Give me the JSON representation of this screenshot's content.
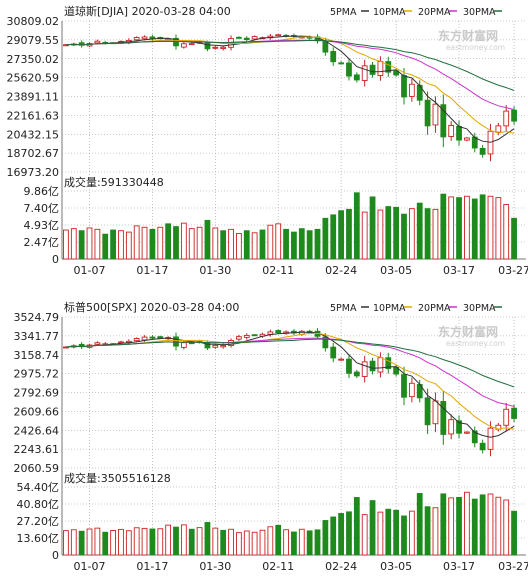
{
  "watermark": {
    "cn": "东方财富网",
    "en": "eastmoney.com"
  },
  "colors": {
    "up": "#cc2222",
    "down": "#1e8a1e",
    "ma5": "#333333",
    "ma10": "#e0a800",
    "ma20": "#cc33cc",
    "ma30": "#1f6f3f",
    "grid": "#9a9a9a"
  },
  "panels": [
    {
      "id": "djia",
      "title": "道琼斯[DJIA] 2020-03-28 04:00",
      "legend": [
        "5PMA",
        "10PMA",
        "20PMA",
        "30PMA"
      ],
      "price_ticks": [
        "30809.02",
        "29079.55",
        "27350.02",
        "25620.59",
        "23891.11",
        "22161.63",
        "20432.15",
        "18702.67",
        "16973.20"
      ],
      "price_range": [
        16973.2,
        30809.02
      ],
      "volume_title": "成交量:591330448",
      "volume_ticks": [
        "9.86亿",
        "7.40亿",
        "4.93亿",
        "2.47亿",
        "0"
      ],
      "volume_max": 9.86,
      "date_ticks": [
        "01-07",
        "01-17",
        "01-30",
        "02-11",
        "02-24",
        "03-05",
        "03-17",
        "03-27"
      ],
      "chart_data": {
        "type": "candlestick",
        "title": "道琼斯[DJIA] 2020-03-28 04:00",
        "ylim": [
          16973.2,
          30809.02
        ],
        "closes": [
          28634,
          28703,
          28584,
          28745,
          28956,
          28824,
          28823,
          28939,
          29030,
          29297,
          29348,
          29186,
          29196,
          29160,
          28535,
          28722,
          28734,
          28859,
          28256,
          28400,
          28399,
          29196,
          29290,
          29102,
          29379,
          29277,
          29424,
          29551,
          29423,
          29398,
          29348,
          29232,
          28992,
          27961,
          27081,
          26957,
          25766,
          25409,
          26703,
          25917,
          27091,
          26121,
          25864,
          23851,
          25018,
          23553,
          21200,
          23185,
          20188,
          21237,
          19899,
          20087,
          19174,
          18592,
          20704,
          21200,
          22552,
          21637
        ],
        "volume_yi": [
          4.2,
          4.4,
          4.1,
          4.5,
          4.3,
          3.6,
          4.2,
          4.1,
          3.9,
          4.8,
          4.6,
          4.3,
          4.6,
          5.1,
          4.7,
          5.2,
          4.4,
          4.6,
          5.6,
          4.5,
          4.1,
          4.3,
          3.7,
          4.1,
          3.8,
          4.2,
          4.9,
          5.1,
          4.3,
          3.9,
          4.4,
          4.1,
          4.3,
          5.9,
          6.4,
          7.0,
          7.2,
          9.6,
          6.8,
          9.0,
          7.1,
          7.6,
          7.5,
          6.5,
          7.3,
          8.1,
          7.3,
          7.2,
          9.4,
          9.0,
          8.9,
          9.1,
          8.7,
          9.3,
          9.1,
          8.9,
          7.9,
          5.9
        ]
      }
    },
    {
      "id": "spx",
      "title": "标普500[SPX] 2020-03-28 04:00",
      "legend": [
        "5PMA",
        "10PMA",
        "20PMA",
        "30PMA"
      ],
      "price_ticks": [
        "3524.79",
        "3341.77",
        "3158.74",
        "2975.72",
        "2792.69",
        "2609.66",
        "2426.64",
        "2243.61",
        "2060.59"
      ],
      "price_range": [
        2060.59,
        3524.79
      ],
      "volume_title": "成交量:3505516128",
      "volume_ticks": [
        "54.40亿",
        "40.80亿",
        "27.20亿",
        "13.60亿",
        "0"
      ],
      "volume_max": 54.4,
      "date_ticks": [
        "01-07",
        "01-17",
        "01-30",
        "02-11",
        "02-24",
        "03-05",
        "03-17",
        "03-27"
      ],
      "chart_data": {
        "type": "candlestick",
        "title": "标普500[SPX] 2020-03-28 04:00",
        "ylim": [
          2060.59,
          3524.79
        ],
        "closes": [
          3234,
          3246,
          3237,
          3253,
          3275,
          3265,
          3266,
          3283,
          3289,
          3316,
          3330,
          3321,
          3321,
          3325,
          3243,
          3276,
          3273,
          3284,
          3225,
          3249,
          3248,
          3297,
          3334,
          3346,
          3352,
          3357,
          3380,
          3373,
          3380,
          3370,
          3386,
          3373,
          3338,
          3226,
          3128,
          3116,
          2979,
          2954,
          3090,
          3003,
          3130,
          3024,
          2972,
          2747,
          2882,
          2741,
          2480,
          2711,
          2386,
          2529,
          2398,
          2409,
          2305,
          2237,
          2447,
          2475,
          2630,
          2541
        ],
        "volume_yi": [
          19.5,
          20.2,
          19.0,
          20.8,
          21.5,
          18.2,
          19.6,
          20.5,
          19.4,
          21.8,
          21.3,
          20.8,
          21.0,
          23.9,
          22.3,
          24.1,
          20.6,
          21.9,
          26.0,
          21.5,
          19.7,
          20.6,
          17.9,
          19.2,
          18.2,
          19.8,
          22.6,
          23.7,
          20.2,
          18.4,
          20.6,
          19.3,
          20.1,
          27.6,
          30.4,
          33.2,
          34.5,
          46.0,
          32.3,
          43.5,
          34.3,
          36.6,
          35.8,
          31.2,
          35.1,
          49.2,
          38.6,
          37.8,
          48.9,
          45.7,
          46.1,
          50.2,
          44.7,
          48.1,
          48.8,
          46.2,
          44.0,
          35.0
        ]
      }
    }
  ]
}
